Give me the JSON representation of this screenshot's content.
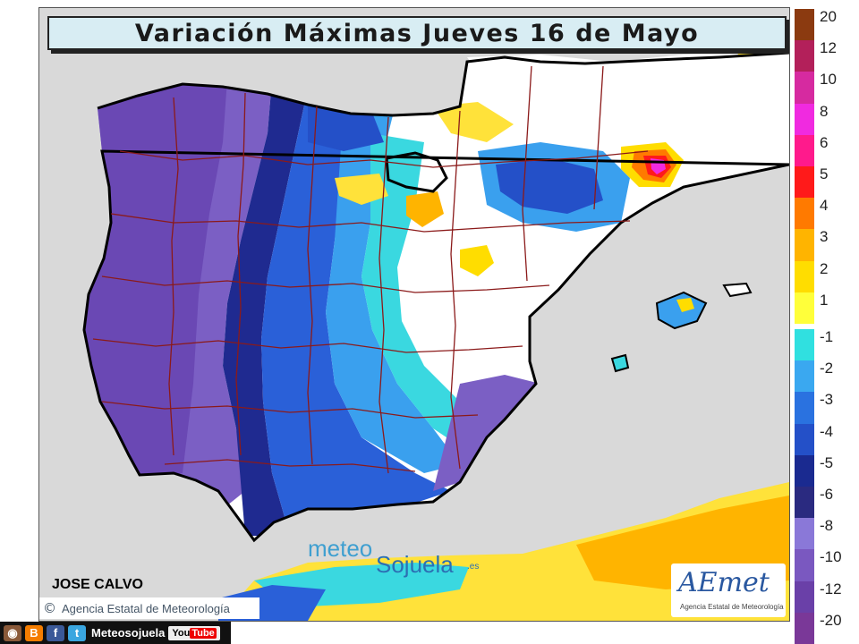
{
  "title": "Variación Máximas Jueves 16 de Mayo",
  "legend": {
    "positive": [
      {
        "label": "20",
        "color": "#8b3a10"
      },
      {
        "label": "12",
        "color": "#b3205a"
      },
      {
        "label": "10",
        "color": "#d62aa0"
      },
      {
        "label": "8",
        "color": "#f02ae0"
      },
      {
        "label": "6",
        "color": "#ff1a8c"
      },
      {
        "label": "5",
        "color": "#ff1a1a"
      },
      {
        "label": "4",
        "color": "#ff7a00"
      },
      {
        "label": "3",
        "color": "#ffb400"
      },
      {
        "label": "2",
        "color": "#ffdd00"
      },
      {
        "label": "1",
        "color": "#ffff3a"
      }
    ],
    "negative": [
      {
        "label": "-1",
        "color": "#30e0e0"
      },
      {
        "label": "-2",
        "color": "#3aa8f0"
      },
      {
        "label": "-3",
        "color": "#2a72e0"
      },
      {
        "label": "-4",
        "color": "#2450c8"
      },
      {
        "label": "-5",
        "color": "#1a2a90"
      },
      {
        "label": "-6",
        "color": "#2a2a80"
      },
      {
        "label": "-8",
        "color": "#8a78d8"
      },
      {
        "label": "-10",
        "color": "#7a58c0"
      },
      {
        "label": "-12",
        "color": "#6a40a8"
      },
      {
        "label": "-20",
        "color": "#7a3898"
      }
    ]
  },
  "author": "JOSE CALVO",
  "copyright": {
    "icon": "copyright-icon",
    "text": "Agencia Estatal de Meteorología"
  },
  "watermark": {
    "top": "meteo",
    "bottom": "Sojuela",
    "suffix": ".es"
  },
  "aemet_logo": {
    "text": "AEmet",
    "subtitle": "Agencia Estatal de Meteorología"
  },
  "social": {
    "icons": [
      "instagram-icon",
      "blogger-icon",
      "facebook-icon",
      "twitter-icon"
    ],
    "name": "Meteosojuela",
    "youtube_a": "You",
    "youtube_b": "Tube"
  },
  "colors": {
    "sea": "#d9d9d9",
    "neutral": "#ffffff",
    "coast": "#000000",
    "borders": "#8b1a1a"
  }
}
